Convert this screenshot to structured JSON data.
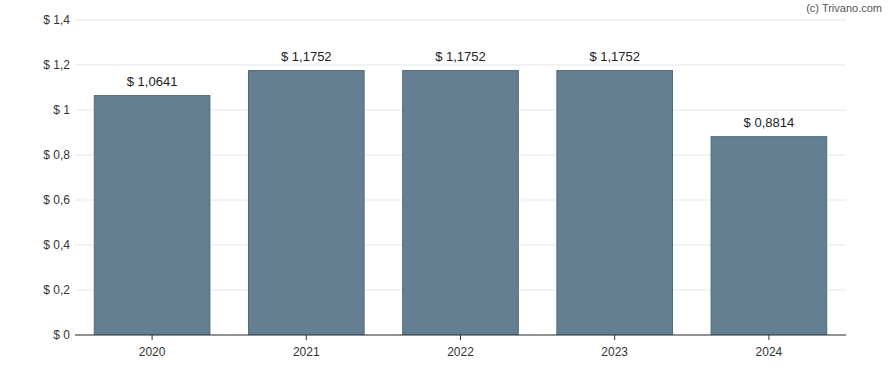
{
  "chart_data": {
    "type": "bar",
    "categories": [
      "2020",
      "2021",
      "2022",
      "2023",
      "2024"
    ],
    "values": [
      1.0641,
      1.1752,
      1.1752,
      1.1752,
      0.8814
    ],
    "value_labels": [
      "$ 1,0641",
      "$ 1,1752",
      "$ 1,1752",
      "$ 1,1752",
      "$ 0,8814"
    ],
    "color": "#647f92",
    "ylim": [
      0,
      1.4
    ],
    "yticks": [
      {
        "value": 0,
        "label": "$ 0"
      },
      {
        "value": 0.2,
        "label": "$ 0,2"
      },
      {
        "value": 0.4,
        "label": "$ 0,4"
      },
      {
        "value": 0.6,
        "label": "$ 0,6"
      },
      {
        "value": 0.8,
        "label": "$ 0,8"
      },
      {
        "value": 1,
        "label": "$ 1"
      },
      {
        "value": 1.2,
        "label": "$ 1,2"
      },
      {
        "value": 1.4,
        "label": "$ 1,4"
      }
    ],
    "grid": true,
    "data_labels": true,
    "annotations": [
      "(c) Trivano.com"
    ]
  }
}
